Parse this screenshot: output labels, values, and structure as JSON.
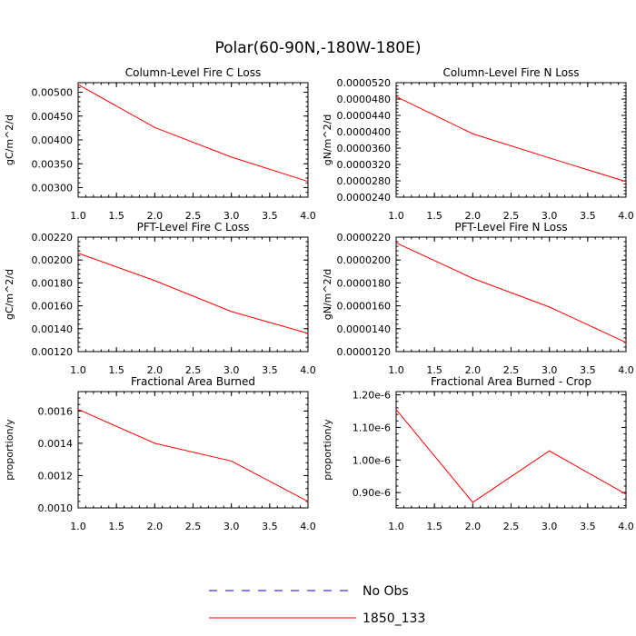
{
  "title": "Polar(60-90N,-180W-180E)",
  "legend": {
    "placement": "bottom-center",
    "items": [
      {
        "name": "No Obs",
        "color": "#0000ff",
        "style": "dashed"
      },
      {
        "name": "1850_133",
        "color": "#ff0000",
        "style": "solid"
      }
    ]
  },
  "chart_data": [
    {
      "type": "line",
      "title": "Column-Level Fire C Loss",
      "xlabel": "",
      "ylabel": "gC/m^2/d",
      "x": [
        1,
        2,
        3,
        4
      ],
      "xlim": [
        1.0,
        4.0
      ],
      "ylim": [
        0.0028,
        0.0052
      ],
      "xticks": [
        "1.0",
        "1.5",
        "2.0",
        "2.5",
        "3.0",
        "3.5",
        "4.0"
      ],
      "xtick_values": [
        1.0,
        1.5,
        2.0,
        2.5,
        3.0,
        3.5,
        4.0
      ],
      "yticks": [
        "0.00300",
        "0.00350",
        "0.00400",
        "0.00450",
        "0.00500"
      ],
      "ytick_values": [
        0.003,
        0.0035,
        0.004,
        0.0045,
        0.005
      ],
      "series": [
        {
          "name": "1850_133",
          "color": "#ff0000",
          "values": [
            0.00516,
            0.00426,
            0.00364,
            0.00313
          ]
        }
      ]
    },
    {
      "type": "line",
      "title": "Column-Level Fire N Loss",
      "xlabel": "",
      "ylabel": "gN/m^2/d",
      "x": [
        1,
        2,
        3,
        4
      ],
      "xlim": [
        1.0,
        4.0
      ],
      "ylim": [
        2.4e-05,
        5.2e-05
      ],
      "xticks": [
        "1.0",
        "1.5",
        "2.0",
        "2.5",
        "3.0",
        "3.5",
        "4.0"
      ],
      "xtick_values": [
        1.0,
        1.5,
        2.0,
        2.5,
        3.0,
        3.5,
        4.0
      ],
      "yticks": [
        "0.0000240",
        "0.0000280",
        "0.0000320",
        "0.0000360",
        "0.0000400",
        "0.0000440",
        "0.0000480",
        "0.0000520"
      ],
      "ytick_values": [
        2.4e-05,
        2.8e-05,
        3.2e-05,
        3.6e-05,
        4e-05,
        4.4e-05,
        4.8e-05,
        5.2e-05
      ],
      "series": [
        {
          "name": "1850_133",
          "color": "#ff0000",
          "values": [
            4.86e-05,
            3.95e-05,
            3.36e-05,
            2.78e-05
          ]
        }
      ]
    },
    {
      "type": "line",
      "title": "PFT-Level Fire C Loss",
      "xlabel": "",
      "ylabel": "gC/m^2/d",
      "x": [
        1,
        2,
        3,
        4
      ],
      "xlim": [
        1.0,
        4.0
      ],
      "ylim": [
        0.0012,
        0.0022
      ],
      "xticks": [
        "1.0",
        "1.5",
        "2.0",
        "2.5",
        "3.0",
        "3.5",
        "4.0"
      ],
      "xtick_values": [
        1.0,
        1.5,
        2.0,
        2.5,
        3.0,
        3.5,
        4.0
      ],
      "yticks": [
        "0.00120",
        "0.00140",
        "0.00160",
        "0.00180",
        "0.00200",
        "0.00220"
      ],
      "ytick_values": [
        0.0012,
        0.0014,
        0.0016,
        0.0018,
        0.002,
        0.0022
      ],
      "series": [
        {
          "name": "1850_133",
          "color": "#ff0000",
          "values": [
            0.00206,
            0.00182,
            0.00155,
            0.00136
          ]
        }
      ]
    },
    {
      "type": "line",
      "title": "PFT-Level Fire N Loss",
      "xlabel": "",
      "ylabel": "gN/m^2/d",
      "x": [
        1,
        2,
        3,
        4
      ],
      "xlim": [
        1.0,
        4.0
      ],
      "ylim": [
        1.2e-05,
        2.2e-05
      ],
      "xticks": [
        "1.0",
        "1.5",
        "2.0",
        "2.5",
        "3.0",
        "3.5",
        "4.0"
      ],
      "xtick_values": [
        1.0,
        1.5,
        2.0,
        2.5,
        3.0,
        3.5,
        4.0
      ],
      "yticks": [
        "0.0000120",
        "0.0000140",
        "0.0000160",
        "0.0000180",
        "0.0000200",
        "0.0000220"
      ],
      "ytick_values": [
        1.2e-05,
        1.4e-05,
        1.6e-05,
        1.8e-05,
        2e-05,
        2.2e-05
      ],
      "series": [
        {
          "name": "1850_133",
          "color": "#ff0000",
          "values": [
            2.15e-05,
            1.84e-05,
            1.59e-05,
            1.28e-05
          ]
        }
      ]
    },
    {
      "type": "line",
      "title": "Fractional Area Burned",
      "xlabel": "",
      "ylabel": "proportion/y",
      "x": [
        1,
        2,
        3,
        4
      ],
      "xlim": [
        1.0,
        4.0
      ],
      "ylim": [
        0.001,
        0.00172
      ],
      "xticks": [
        "1.0",
        "1.5",
        "2.0",
        "2.5",
        "3.0",
        "3.5",
        "4.0"
      ],
      "xtick_values": [
        1.0,
        1.5,
        2.0,
        2.5,
        3.0,
        3.5,
        4.0
      ],
      "yticks": [
        "0.0010",
        "0.0012",
        "0.0014",
        "0.0016"
      ],
      "ytick_values": [
        0.001,
        0.0012,
        0.0014,
        0.0016
      ],
      "series": [
        {
          "name": "1850_133",
          "color": "#ff0000",
          "values": [
            0.00161,
            0.0014,
            0.00129,
            0.00104
          ]
        }
      ]
    },
    {
      "type": "line",
      "title": "Fractional Area Burned - Crop",
      "xlabel": "",
      "ylabel": "proportion/y",
      "x": [
        1,
        2,
        3,
        4
      ],
      "xlim": [
        1.0,
        4.0
      ],
      "ylim": [
        8.53e-07,
        1.21e-06
      ],
      "xticks": [
        "1.0",
        "1.5",
        "2.0",
        "2.5",
        "3.0",
        "3.5",
        "4.0"
      ],
      "xtick_values": [
        1.0,
        1.5,
        2.0,
        2.5,
        3.0,
        3.5,
        4.0
      ],
      "yticks": [
        "0.90e-6",
        "1.00e-6",
        "1.10e-6",
        "1.20e-6"
      ],
      "ytick_values": [
        9e-07,
        1e-06,
        1.1e-06,
        1.2e-06
      ],
      "series": [
        {
          "name": "1850_133",
          "color": "#ff0000",
          "values": [
            1.155e-06,
            8.7e-07,
            1.028e-06,
            8.95e-07
          ]
        }
      ]
    }
  ]
}
